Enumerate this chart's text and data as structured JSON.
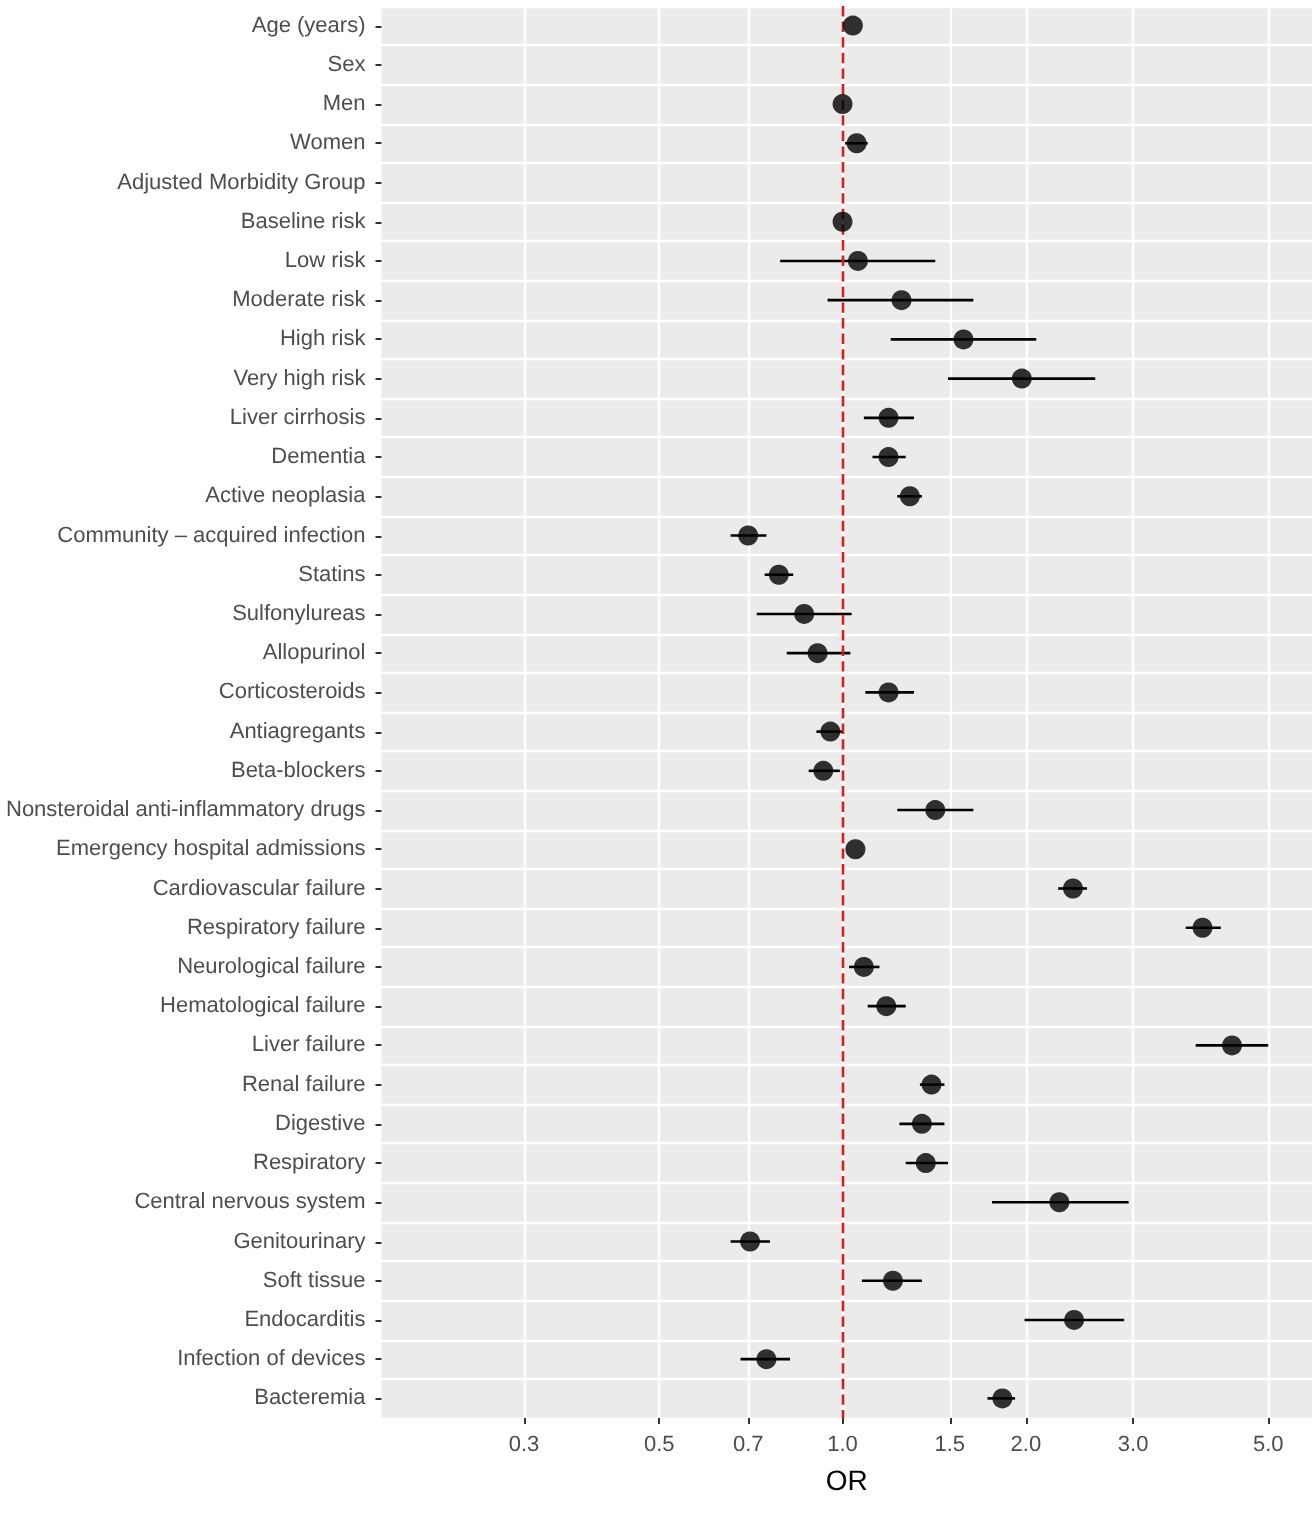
{
  "chart_data": {
    "type": "scatter",
    "orientation": "horizontal",
    "log": "x",
    "xlabel": "OR",
    "grid": true,
    "marker": "circle",
    "legend": false,
    "categories": [
      "Age (years)",
      "Sex",
      "Men",
      "Women",
      "Adjusted Morbidity Group",
      "Baseline risk",
      "Low risk",
      "Moderate risk",
      "High risk",
      "Very high risk",
      "Liver cirrhosis",
      "Dementia",
      "Active neoplasia",
      "Community – acquired infection",
      "Statins",
      "Sulfonylureas",
      "Allopurinol",
      "Corticosteroids",
      "Antiagregants",
      "Beta-blockers",
      "Nonsteroidal anti-inflammatory drugs",
      "Emergency hospital admissions",
      "Cardiovascular failure",
      "Respiratory failure",
      "Neurological failure",
      "Hematological failure",
      "Liver failure",
      "Renal failure",
      "Digestive",
      "Respiratory",
      "Central nervous system",
      "Genitourinary",
      "Soft tissue",
      "Endocarditis",
      "Infection of devices",
      "Bacteremia"
    ],
    "series": [
      {
        "color": "#000000",
        "values": [
          1.04,
          null,
          1.0,
          1.055,
          null,
          1.0,
          1.06,
          1.25,
          1.58,
          1.97,
          1.19,
          1.19,
          1.29,
          0.7,
          0.786,
          0.865,
          0.91,
          1.19,
          0.955,
          0.93,
          1.42,
          1.05,
          2.39,
          3.9,
          1.084,
          1.18,
          4.36,
          1.4,
          1.35,
          1.37,
          2.27,
          0.705,
          1.21,
          2.4,
          0.75,
          1.83
        ],
        "errors": [
          null,
          null,
          null,
          [
            1.01,
            1.1
          ],
          null,
          null,
          [
            0.79,
            1.42
          ],
          [
            0.945,
            1.64
          ],
          [
            1.2,
            2.08
          ],
          [
            1.49,
            2.6
          ],
          [
            1.084,
            1.31
          ],
          [
            1.12,
            1.27
          ],
          [
            1.23,
            1.35
          ],
          [
            0.655,
            0.75
          ],
          [
            0.745,
            0.83
          ],
          [
            0.723,
            1.035
          ],
          [
            0.81,
            1.03
          ],
          [
            1.09,
            1.31
          ],
          [
            0.906,
            1.0
          ],
          [
            0.88,
            0.99
          ],
          [
            1.23,
            1.64
          ],
          null,
          [
            2.26,
            2.52
          ],
          [
            3.66,
            4.18
          ],
          [
            1.025,
            1.15
          ],
          [
            1.1,
            1.27
          ],
          [
            3.8,
            5.0
          ],
          [
            1.34,
            1.47
          ],
          [
            1.24,
            1.47
          ],
          [
            1.27,
            1.49
          ],
          [
            1.76,
            2.95
          ],
          [
            0.655,
            0.76
          ],
          [
            1.076,
            1.35
          ],
          [
            1.99,
            2.9
          ],
          [
            0.68,
            0.82
          ],
          [
            1.73,
            1.92
          ]
        ]
      }
    ],
    "xlim": [
      0.175,
      5.9
    ],
    "xticks": [
      0.3,
      0.5,
      0.7,
      {
        "value": 1,
        "label": "1.0"
      },
      1.5,
      {
        "value": 2,
        "label": "2.0"
      },
      {
        "value": 3,
        "label": "3.0"
      },
      {
        "value": 5,
        "label": "5.0"
      }
    ],
    "ref_lines": [
      {
        "axis": "x",
        "value": 1,
        "color": "#cc2222",
        "line_style": "dashed"
      }
    ]
  }
}
